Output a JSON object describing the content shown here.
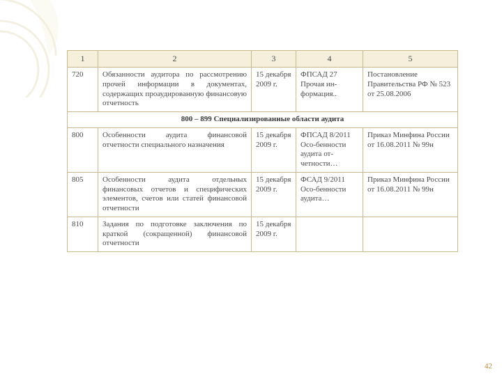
{
  "page_number": "42",
  "bg": {
    "leaf_stroke": "#e8e2c4",
    "ring_stroke": "#e8e2c4"
  },
  "table": {
    "header": [
      "1",
      "2",
      "3",
      "4",
      "5"
    ],
    "rows": [
      {
        "type": "data",
        "c1": "720",
        "c2": "Обязанности аудитора по рассмотрению прочей информации в документах, содержащих проаудированную финансовую отчетность",
        "c3": "15 декабря 2009 г.",
        "c4": "ФПСАД 27 Прочая ин-формация..",
        "c5": "Постановление Правительства РФ № 523 от 25.08.2006"
      },
      {
        "type": "section",
        "text": "800 – 899 Специализированные области аудита"
      },
      {
        "type": "data",
        "c1": "800",
        "c2": "Особенности аудита финансовой отчетности специального назначения",
        "c3": "15 декабря 2009 г.",
        "c4": "ФПСАД 8/2011 Осо-бенности аудита от-четности…",
        "c5": "Приказ Минфина России от 16.08.2011 № 99н"
      },
      {
        "type": "data",
        "c1": "805",
        "c2": "Особенности аудита отдельных финансовых отчетов и специфических элементов, счетов или статей финансовой отчетности",
        "c3": "15 декабря 2009 г.",
        "c4": "ФСАД 9/2011 Осо-бенности аудита…",
        "c5": "Приказ Минфина России от 16.08.2011 № 99н"
      },
      {
        "type": "data",
        "c1": "810",
        "c2": "Задания по подготовке заключения по краткой (сокращенной) финансовой отчетности",
        "c3": "15 декабря 2009 г.",
        "c4": "",
        "c5": ""
      }
    ],
    "colors": {
      "border": "#c9b98a",
      "header_bg": "#f5efdc"
    }
  }
}
